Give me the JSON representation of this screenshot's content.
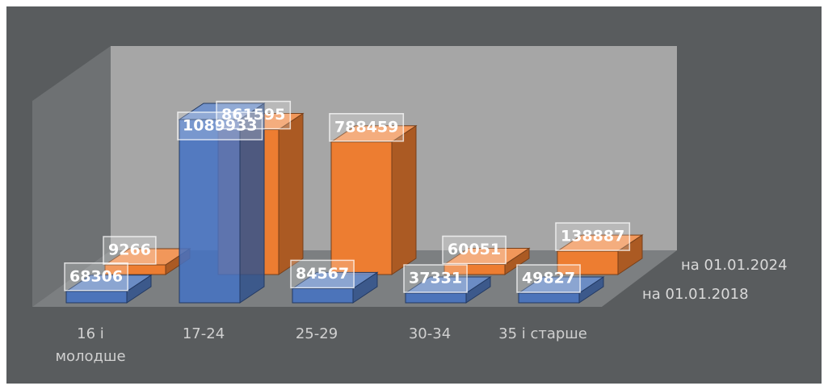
{
  "chart_data": {
    "type": "bar3d",
    "categories": [
      "16 і молодше",
      "17-24",
      "25-29",
      "30-34",
      "35 і старше"
    ],
    "series": [
      {
        "name": "на 01.01.2018",
        "color": "#4472c4",
        "values": [
          68306,
          1089933,
          84567,
          37331,
          49827
        ]
      },
      {
        "name": "на 01.01.2024",
        "color": "#ed7d31",
        "values": [
          9266,
          861595,
          788459,
          60051,
          138887
        ]
      }
    ]
  }
}
